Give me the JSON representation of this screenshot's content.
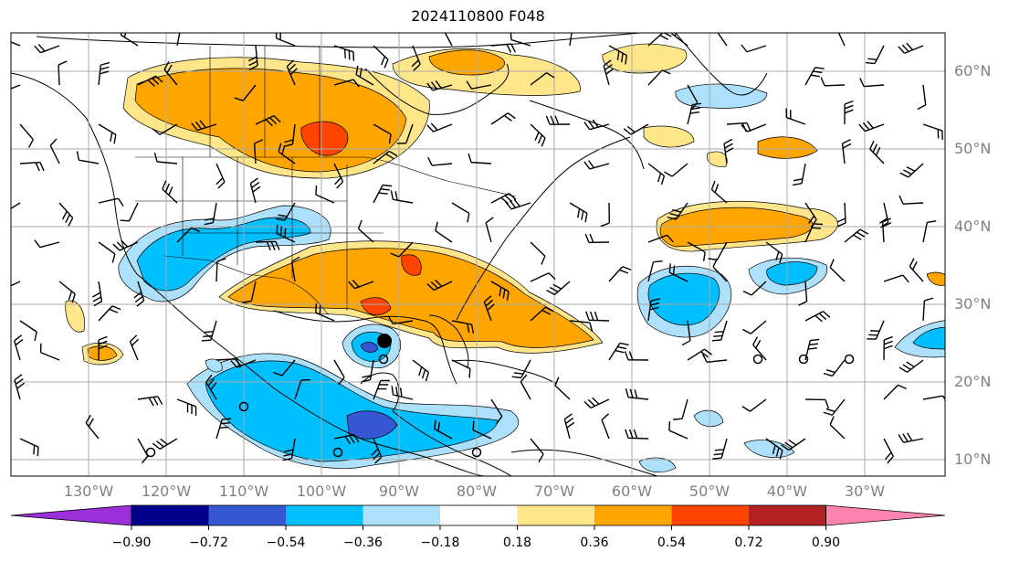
{
  "title": "2024110800 F048",
  "map": {
    "lat_labels": [
      "60°N",
      "50°N",
      "40°N",
      "30°N",
      "20°N",
      "10°N"
    ],
    "lon_labels": [
      "130°W",
      "120°W",
      "110°W",
      "100°W",
      "90°W",
      "80°W",
      "70°W",
      "60°W",
      "50°W",
      "40°W",
      "30°W"
    ],
    "marker": "filled-black-dot"
  },
  "colorbar": {
    "tick_labels": [
      "−0.90",
      "−0.72",
      "−0.54",
      "−0.36",
      "−0.18",
      "0.18",
      "0.36",
      "0.54",
      "0.72",
      "0.90"
    ],
    "colors": [
      "#9b30d9",
      "#00008b",
      "#3657d4",
      "#00bfff",
      "#ade0fa",
      "#ffffff",
      "#ffe68a",
      "#ffa500",
      "#ff4500",
      "#b22222",
      "#ff85b0"
    ],
    "extend": "both"
  }
}
